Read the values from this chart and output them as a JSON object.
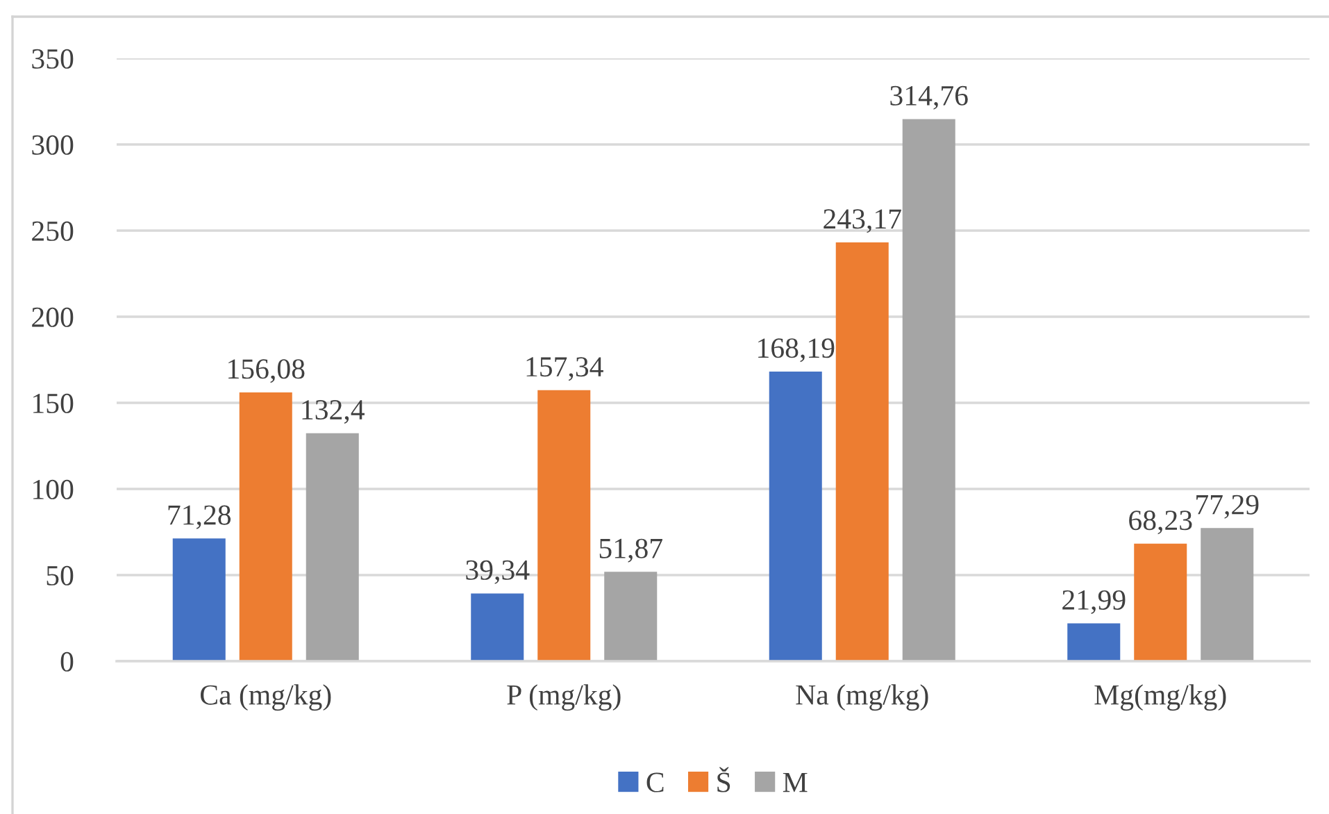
{
  "chart_data": {
    "type": "bar",
    "categories": [
      "Ca (mg/kg)",
      "P (mg/kg)",
      "Na (mg/kg)",
      "Mg(mg/kg)"
    ],
    "series": [
      {
        "name": "C",
        "color": "#4472c4",
        "values": [
          71.28,
          39.34,
          168.19,
          21.99
        ],
        "value_labels": [
          "71,28",
          "39,34",
          "168,19",
          "21,99"
        ]
      },
      {
        "name": "Š",
        "color": "#ed7d31",
        "values": [
          156.08,
          157.34,
          243.17,
          68.23
        ],
        "value_labels": [
          "156,08",
          "157,34",
          "243,17",
          "68,23"
        ]
      },
      {
        "name": "M",
        "color": "#a5a5a5",
        "values": [
          132.4,
          51.87,
          314.76,
          77.29
        ],
        "value_labels": [
          "132,4",
          "51,87",
          "314,76",
          "77,29"
        ]
      }
    ],
    "ylim": [
      0,
      350
    ],
    "yticks": [
      0,
      50,
      100,
      150,
      200,
      250,
      300,
      350
    ],
    "grid": "y",
    "legend": "bottom"
  }
}
